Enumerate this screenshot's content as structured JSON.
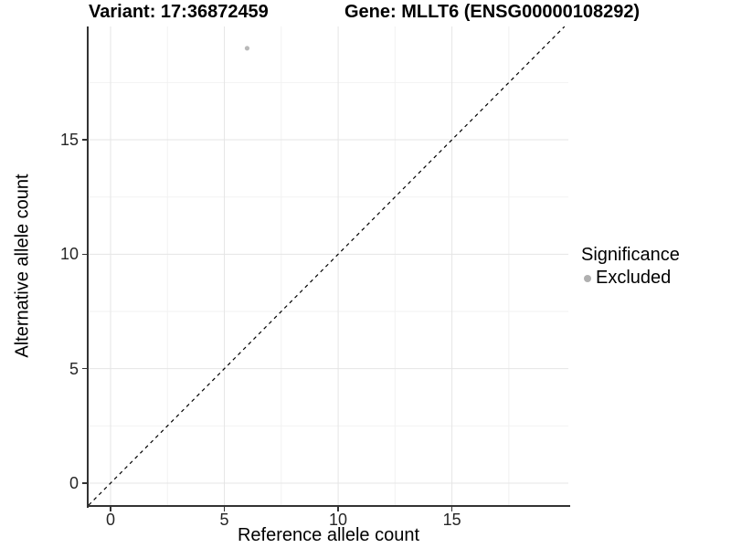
{
  "chart_data": {
    "type": "scatter",
    "titles": {
      "left": "Variant: 17:36872459",
      "right": "Gene: MLLT6 (ENSG00000108292)"
    },
    "xlabel": "Reference allele count",
    "ylabel": "Alternative allele count",
    "xlim": [
      -0.964,
      20.116
    ],
    "ylim": [
      -1.0,
      19.95
    ],
    "x_ticks": [
      0,
      5,
      10,
      15
    ],
    "y_ticks": [
      0,
      5,
      10,
      15
    ],
    "x_minor_gridlines": [
      2.5,
      7.5,
      12.5,
      17.5
    ],
    "y_minor_gridlines": [
      2.5,
      7.5,
      12.5,
      17.5
    ],
    "grid": "major+minor",
    "legend_position": "right",
    "series": [
      {
        "name": "Excluded",
        "color": "#b9b9b9",
        "points": [
          {
            "x": 6,
            "y": 19
          }
        ]
      }
    ],
    "reference_line": {
      "type": "identity",
      "slope": 1,
      "intercept": 0,
      "style": "dashed",
      "color": "#000000"
    },
    "legend": {
      "title": "Significance",
      "entries": [
        {
          "label": "Excluded",
          "color": "#b0b0b0"
        }
      ]
    }
  },
  "colors": {
    "background": "#ffffff",
    "axis_line": "#333333",
    "tick_mark": "#333333",
    "tick_label": "#262626",
    "grid_major": "#e5e5e5",
    "grid_minor": "#f2f2f2"
  }
}
